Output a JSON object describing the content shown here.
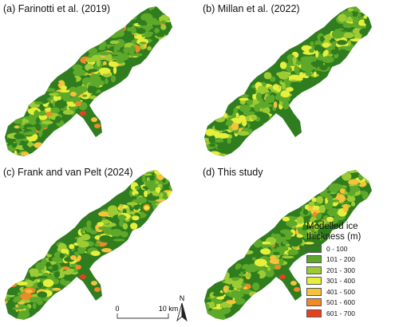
{
  "panels": [
    {
      "id": "a",
      "title": "(a) Farinotti et al. (2019)"
    },
    {
      "id": "b",
      "title": "(b) Millan et al. (2022)"
    },
    {
      "id": "c",
      "title": "(c) Frank and van Pelt (2024)"
    },
    {
      "id": "d",
      "title": "(d) This study"
    }
  ],
  "legend": {
    "title_line1": "Modelled ice",
    "title_line2": "thickness (m)",
    "classes": [
      {
        "label": "0 - 100",
        "color": "#2f7d1f"
      },
      {
        "label": "101 - 200",
        "color": "#5ea82a"
      },
      {
        "label": "201 - 300",
        "color": "#9ccb33"
      },
      {
        "label": "301 - 400",
        "color": "#e6ef3c"
      },
      {
        "label": "401 - 500",
        "color": "#f6c23a"
      },
      {
        "label": "501 - 600",
        "color": "#f08a26"
      },
      {
        "label": "601 - 700",
        "color": "#e8401f"
      }
    ]
  },
  "scalebar": {
    "start_label": "0",
    "end_label": "10 km"
  },
  "north_arrow": {
    "label": "N"
  }
}
